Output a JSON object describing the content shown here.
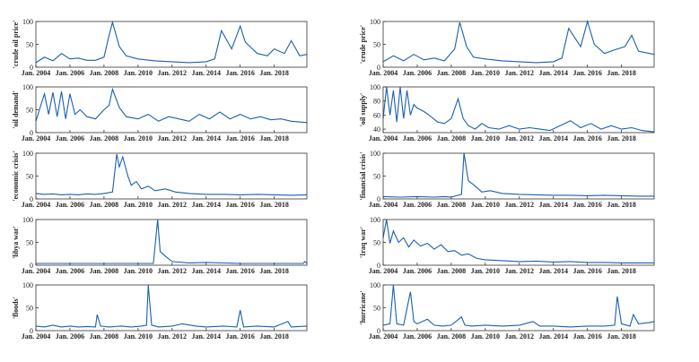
{
  "chart_data": [
    {
      "type": "line",
      "ylabel": "'crude oil price'",
      "ylim": [
        0,
        100
      ],
      "yticks": [
        0,
        50,
        100
      ],
      "xlim": [
        2004.0,
        2019.917
      ],
      "xticks": [
        2004,
        2006,
        2008,
        2010,
        2012,
        2014,
        2016,
        2018
      ],
      "xtick_labels": [
        "Jan. 2004",
        "Jan. 2006",
        "Jan. 2008",
        "Jan. 2010",
        "Jan. 2012",
        "Jan. 2014",
        "Jan. 2016",
        "Jan. 2018"
      ],
      "color": "#1a5fb0",
      "x": [
        2004.0,
        2004.5,
        2005.0,
        2005.5,
        2006.0,
        2006.5,
        2007.0,
        2007.5,
        2008.0,
        2008.3,
        2008.5,
        2008.9,
        2009.3,
        2010.0,
        2011.0,
        2012.0,
        2013.0,
        2014.0,
        2014.5,
        2014.9,
        2015.2,
        2015.5,
        2016.0,
        2016.3,
        2017.0,
        2017.6,
        2018.0,
        2018.6,
        2019.0,
        2019.5,
        2019.917
      ],
      "y": [
        10,
        22,
        14,
        30,
        18,
        20,
        15,
        15,
        22,
        70,
        98,
        45,
        25,
        18,
        14,
        12,
        10,
        12,
        18,
        80,
        60,
        40,
        90,
        55,
        30,
        25,
        40,
        30,
        58,
        25,
        28
      ]
    },
    {
      "type": "line",
      "ylabel": "'crude price'",
      "ylim": [
        0,
        100
      ],
      "yticks": [
        0,
        50,
        100
      ],
      "xlim": [
        2004.0,
        2019.917
      ],
      "xticks": [
        2004,
        2006,
        2008,
        2010,
        2012,
        2014,
        2016,
        2018
      ],
      "xtick_labels": [
        "Jan. 2004",
        "Jan. 2006",
        "Jan. 2008",
        "Jan. 2010",
        "Jan. 2012",
        "Jan. 2014",
        "Jan. 2016",
        "Jan. 2018"
      ],
      "color": "#1a5fb0",
      "x": [
        2004.0,
        2004.6,
        2005.2,
        2005.8,
        2006.4,
        2007.0,
        2007.6,
        2008.2,
        2008.5,
        2008.9,
        2009.3,
        2010.0,
        2011.0,
        2012.0,
        2013.0,
        2014.0,
        2014.5,
        2014.9,
        2015.3,
        2015.6,
        2016.0,
        2016.4,
        2017.0,
        2017.6,
        2018.2,
        2018.6,
        2019.0,
        2019.917
      ],
      "y": [
        12,
        25,
        14,
        28,
        16,
        20,
        14,
        40,
        98,
        45,
        22,
        18,
        14,
        12,
        10,
        12,
        20,
        85,
        62,
        45,
        100,
        50,
        30,
        38,
        45,
        70,
        35,
        28
      ]
    },
    {
      "type": "line",
      "ylabel": "'oil demand'",
      "ylim": [
        0,
        100
      ],
      "yticks": [
        0,
        50,
        100
      ],
      "xlim": [
        2004.0,
        2019.917
      ],
      "xticks": [
        2004,
        2006,
        2008,
        2010,
        2012,
        2014,
        2016,
        2018
      ],
      "xtick_labels": [
        "Jan. 2004",
        "Jan. 2006",
        "Jan. 2008",
        "Jan. 2010",
        "Jan. 2012",
        "Jan. 2014",
        "Jan. 2016",
        "Jan. 2018"
      ],
      "color": "#1a5fb0",
      "x": [
        2004.0,
        2004.25,
        2004.5,
        2004.75,
        2005.0,
        2005.25,
        2005.5,
        2005.75,
        2006.0,
        2006.3,
        2006.6,
        2007.0,
        2007.5,
        2008.0,
        2008.3,
        2008.5,
        2008.9,
        2009.3,
        2010.0,
        2010.6,
        2011.2,
        2011.8,
        2012.4,
        2013.0,
        2013.6,
        2014.2,
        2014.8,
        2015.4,
        2016.0,
        2016.6,
        2017.2,
        2017.8,
        2018.4,
        2019.0,
        2019.917
      ],
      "y": [
        25,
        55,
        85,
        40,
        88,
        35,
        90,
        30,
        85,
        40,
        50,
        35,
        30,
        50,
        60,
        95,
        55,
        35,
        30,
        40,
        25,
        35,
        30,
        25,
        40,
        30,
        45,
        30,
        40,
        30,
        35,
        28,
        30,
        25,
        22
      ]
    },
    {
      "type": "line",
      "ylabel": "'oil supply'",
      "ylim": [
        35,
        100
      ],
      "yticks": [
        40,
        60,
        80,
        100
      ],
      "xlim": [
        2004.0,
        2019.917
      ],
      "xticks": [
        2004,
        2006,
        2008,
        2010,
        2012,
        2014,
        2016,
        2018
      ],
      "xtick_labels": [
        "Jan. 2004",
        "Jan. 2006",
        "Jan. 2008",
        "Jan. 2010",
        "Jan. 2012",
        "Jan. 2014",
        "Jan. 2016",
        "Jan. 2018"
      ],
      "color": "#1a5fb0",
      "x": [
        2004.0,
        2004.2,
        2004.4,
        2004.6,
        2004.8,
        2005.0,
        2005.2,
        2005.4,
        2005.6,
        2005.8,
        2006.0,
        2006.4,
        2006.8,
        2007.2,
        2007.6,
        2008.0,
        2008.4,
        2008.7,
        2009.0,
        2009.4,
        2009.8,
        2010.2,
        2010.8,
        2011.4,
        2012.0,
        2012.6,
        2013.2,
        2013.8,
        2014.4,
        2015.0,
        2015.6,
        2016.2,
        2016.8,
        2017.4,
        2018.0,
        2018.6,
        2019.2,
        2019.917
      ],
      "y": [
        55,
        100,
        60,
        95,
        50,
        100,
        55,
        95,
        60,
        75,
        70,
        65,
        58,
        50,
        48,
        55,
        83,
        55,
        45,
        40,
        48,
        42,
        40,
        45,
        40,
        42,
        40,
        38,
        45,
        52,
        42,
        48,
        40,
        45,
        40,
        42,
        38,
        36
      ]
    },
    {
      "type": "line",
      "ylabel": "'economic crisis'",
      "ylim": [
        0,
        100
      ],
      "yticks": [
        0,
        50,
        100
      ],
      "xlim": [
        2004.0,
        2019.917
      ],
      "xticks": [
        2004,
        2006,
        2008,
        2010,
        2012,
        2014,
        2016,
        2018
      ],
      "xtick_labels": [
        "Jan. 2004",
        "Jan. 2006",
        "Jan. 2008",
        "Jan. 2010",
        "Jan. 2012",
        "Jan. 2014",
        "Jan. 2016",
        "Jan. 2018"
      ],
      "color": "#1a5fb0",
      "x": [
        2004.0,
        2004.5,
        2005.0,
        2005.5,
        2006.0,
        2006.5,
        2007.0,
        2007.5,
        2008.0,
        2008.5,
        2008.75,
        2008.9,
        2009.1,
        2009.4,
        2009.6,
        2009.9,
        2010.2,
        2010.6,
        2011.0,
        2011.6,
        2012.2,
        2013.0,
        2014.0,
        2015.0,
        2016.0,
        2017.0,
        2018.0,
        2019.0,
        2019.917
      ],
      "y": [
        12,
        10,
        11,
        9,
        10,
        9,
        11,
        10,
        12,
        15,
        98,
        70,
        92,
        50,
        30,
        38,
        22,
        28,
        18,
        22,
        15,
        12,
        10,
        10,
        9,
        10,
        9,
        8,
        9
      ]
    },
    {
      "type": "line",
      "ylabel": "'financial crisis'",
      "ylim": [
        0,
        100
      ],
      "yticks": [
        0,
        50,
        100
      ],
      "xlim": [
        2004.0,
        2019.917
      ],
      "xticks": [
        2004,
        2006,
        2008,
        2010,
        2012,
        2014,
        2016,
        2018
      ],
      "xtick_labels": [
        "Jan. 2004",
        "Jan. 2006",
        "Jan. 2008",
        "Jan. 2010",
        "Jan. 2012",
        "Jan. 2014",
        "Jan. 2016",
        "Jan. 2018"
      ],
      "color": "#1a5fb0",
      "x": [
        2004.0,
        2005.0,
        2006.0,
        2007.0,
        2007.6,
        2008.0,
        2008.6,
        2008.75,
        2009.0,
        2009.4,
        2009.8,
        2010.3,
        2011.0,
        2012.0,
        2013.0,
        2014.0,
        2015.0,
        2016.0,
        2017.0,
        2018.0,
        2019.0,
        2019.917
      ],
      "y": [
        5,
        4,
        5,
        4,
        5,
        4,
        10,
        100,
        40,
        28,
        15,
        18,
        12,
        10,
        9,
        8,
        8,
        7,
        8,
        7,
        6,
        6
      ]
    },
    {
      "type": "line",
      "ylabel": "'libya war'",
      "ylim": [
        0,
        100
      ],
      "yticks": [
        0,
        50,
        100
      ],
      "xlim": [
        2004.0,
        2019.917
      ],
      "xticks": [
        2004,
        2006,
        2008,
        2010,
        2012,
        2014,
        2016,
        2018
      ],
      "xtick_labels": [
        "Jan. 2004",
        "Jan. 2006",
        "Jan. 2008",
        "Jan. 2010",
        "Jan. 2012",
        "Jan. 2014",
        "Jan. 2016",
        "Jan. 2018"
      ],
      "color": "#1a5fb0",
      "x": [
        2004.0,
        2006.0,
        2008.0,
        2010.0,
        2010.9,
        2011.15,
        2011.3,
        2011.6,
        2012.0,
        2013.0,
        2014.0,
        2016.0,
        2018.0,
        2019.7,
        2019.8,
        2019.917
      ],
      "y": [
        4,
        4,
        4,
        4,
        4,
        100,
        30,
        20,
        8,
        5,
        6,
        4,
        4,
        4,
        8,
        4
      ]
    },
    {
      "type": "line",
      "ylabel": "'Iraq war'",
      "ylim": [
        0,
        100
      ],
      "yticks": [
        0,
        50,
        100
      ],
      "xlim": [
        2004.0,
        2019.917
      ],
      "xticks": [
        2004,
        2006,
        2008,
        2010,
        2012,
        2014,
        2016,
        2018
      ],
      "xtick_labels": [
        "Jan. 2004",
        "Jan. 2006",
        "Jan. 2008",
        "Jan. 2010",
        "Jan. 2012",
        "Jan. 2014",
        "Jan. 2016",
        "Jan. 2018"
      ],
      "color": "#1a5fb0",
      "x": [
        2004.0,
        2004.2,
        2004.4,
        2004.6,
        2004.9,
        2005.2,
        2005.5,
        2005.8,
        2006.2,
        2006.6,
        2007.0,
        2007.4,
        2007.8,
        2008.2,
        2008.6,
        2009.0,
        2009.5,
        2010.0,
        2011.0,
        2012.0,
        2013.0,
        2014.0,
        2015.0,
        2016.0,
        2017.0,
        2018.0,
        2019.0,
        2019.917
      ],
      "y": [
        60,
        100,
        48,
        75,
        50,
        60,
        40,
        55,
        42,
        48,
        35,
        45,
        30,
        32,
        22,
        25,
        15,
        12,
        10,
        8,
        9,
        7,
        8,
        6,
        6,
        5,
        5,
        5
      ]
    },
    {
      "type": "line",
      "ylabel": "'floods'",
      "ylim": [
        0,
        100
      ],
      "yticks": [
        0,
        50,
        100
      ],
      "xlim": [
        2004.0,
        2019.917
      ],
      "xticks": [
        2004,
        2006,
        2008,
        2010,
        2012,
        2014,
        2016,
        2018
      ],
      "xtick_labels": [
        "Jan. 2004",
        "Jan. 2006",
        "Jan. 2008",
        "Jan. 2010",
        "Jan. 2012",
        "Jan. 2014",
        "Jan. 2016",
        "Jan. 2018"
      ],
      "color": "#1a5fb0",
      "x": [
        2004.0,
        2004.5,
        2005.0,
        2005.5,
        2006.0,
        2006.5,
        2007.0,
        2007.5,
        2007.6,
        2007.8,
        2008.3,
        2009.0,
        2009.6,
        2010.2,
        2010.5,
        2010.6,
        2010.8,
        2011.2,
        2012.0,
        2012.6,
        2013.4,
        2014.0,
        2015.0,
        2015.8,
        2016.0,
        2016.2,
        2017.0,
        2018.0,
        2018.8,
        2019.0,
        2019.917
      ],
      "y": [
        10,
        8,
        12,
        8,
        10,
        8,
        9,
        8,
        35,
        10,
        8,
        10,
        8,
        10,
        12,
        100,
        12,
        8,
        10,
        15,
        10,
        8,
        10,
        8,
        45,
        8,
        10,
        8,
        20,
        8,
        10
      ]
    },
    {
      "type": "line",
      "ylabel": "'hurricane'",
      "ylim": [
        0,
        100
      ],
      "yticks": [
        0,
        50,
        100
      ],
      "xlim": [
        2004.0,
        2019.917
      ],
      "xticks": [
        2004,
        2006,
        2008,
        2010,
        2012,
        2014,
        2016,
        2018
      ],
      "xtick_labels": [
        "Jan. 2004",
        "Jan. 2006",
        "Jan. 2008",
        "Jan. 2010",
        "Jan. 2012",
        "Jan. 2014",
        "Jan. 2016",
        "Jan. 2018"
      ],
      "color": "#1a5fb0",
      "x": [
        2004.0,
        2004.4,
        2004.6,
        2004.8,
        2005.2,
        2005.6,
        2005.8,
        2006.0,
        2006.6,
        2007.0,
        2007.5,
        2008.0,
        2008.6,
        2008.8,
        2009.2,
        2010.0,
        2011.0,
        2012.0,
        2012.8,
        2013.2,
        2014.0,
        2015.0,
        2016.0,
        2017.0,
        2017.6,
        2017.75,
        2018.0,
        2018.5,
        2018.7,
        2019.0,
        2019.7,
        2019.917
      ],
      "y": [
        12,
        15,
        100,
        15,
        12,
        85,
        20,
        15,
        25,
        12,
        10,
        12,
        30,
        12,
        10,
        12,
        10,
        12,
        20,
        10,
        10,
        8,
        10,
        10,
        12,
        75,
        15,
        10,
        35,
        15,
        18,
        20
      ]
    }
  ]
}
